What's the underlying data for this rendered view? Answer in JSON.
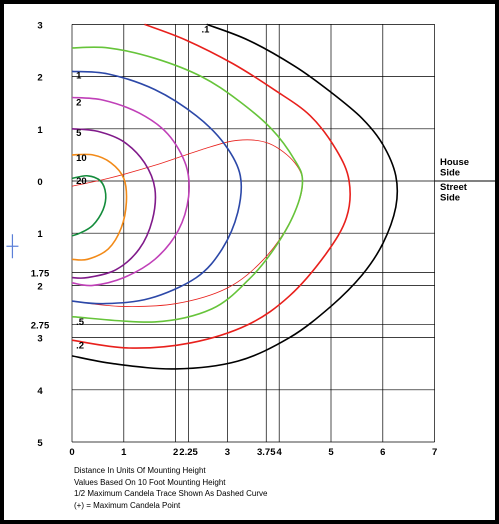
{
  "chart_data": {
    "type": "line",
    "title": "",
    "xlabel": "",
    "ylabel": "",
    "x_ticks": [
      {
        "value": 0,
        "label": "0"
      },
      {
        "value": 1,
        "label": "1"
      },
      {
        "value": 2,
        "label": "2"
      },
      {
        "value": 2.25,
        "label": "2.25"
      },
      {
        "value": 3,
        "label": "3"
      },
      {
        "value": 3.75,
        "label": "3.75"
      },
      {
        "value": 4,
        "label": "4"
      },
      {
        "value": 5,
        "label": "5"
      },
      {
        "value": 6,
        "label": "6"
      },
      {
        "value": 7,
        "label": "7"
      }
    ],
    "y_ticks": [
      {
        "value": 3,
        "label": "3"
      },
      {
        "value": 2,
        "label": "2"
      },
      {
        "value": 1,
        "label": "1"
      },
      {
        "value": 0,
        "label": "0"
      },
      {
        "value": -1,
        "label": "1"
      },
      {
        "value": -1.75,
        "label": "1.75"
      },
      {
        "value": -2,
        "label": "2"
      },
      {
        "value": -2.75,
        "label": "2.75"
      },
      {
        "value": -3,
        "label": "3"
      },
      {
        "value": -4,
        "label": "4"
      },
      {
        "value": -5,
        "label": "5"
      }
    ],
    "xlim": [
      0,
      7
    ],
    "ylim": [
      -5,
      3
    ],
    "grid": true,
    "side_labels": {
      "house": "House\nSide",
      "street": "Street\nSide"
    },
    "series": [
      {
        "label": ".1",
        "label_at": [
          2.5,
          2.9
        ],
        "color": "#000000",
        "points": [
          [
            2.6,
            3.0
          ],
          [
            3.4,
            2.7
          ],
          [
            4.3,
            2.2
          ],
          [
            5.0,
            1.7
          ],
          [
            5.6,
            1.2
          ],
          [
            6.0,
            0.7
          ],
          [
            6.25,
            0.1
          ],
          [
            6.25,
            -0.5
          ],
          [
            6.0,
            -1.2
          ],
          [
            5.6,
            -1.8
          ],
          [
            5.0,
            -2.4
          ],
          [
            4.2,
            -3.0
          ],
          [
            3.2,
            -3.45
          ],
          [
            2.0,
            -3.6
          ],
          [
            0.8,
            -3.5
          ],
          [
            0,
            -3.35
          ]
        ]
      },
      {
        "label": ".2",
        "label_at": [
          0.08,
          -3.15
        ],
        "color": "#e8201c",
        "points": [
          [
            1.4,
            3.0
          ],
          [
            2.2,
            2.7
          ],
          [
            3.1,
            2.25
          ],
          [
            3.9,
            1.75
          ],
          [
            4.6,
            1.25
          ],
          [
            5.1,
            0.6
          ],
          [
            5.35,
            0.0
          ],
          [
            5.3,
            -0.7
          ],
          [
            4.9,
            -1.4
          ],
          [
            4.2,
            -2.2
          ],
          [
            3.4,
            -2.75
          ],
          [
            2.3,
            -3.1
          ],
          [
            1.1,
            -3.2
          ],
          [
            0,
            -3.05
          ]
        ]
      },
      {
        "label": ".5",
        "label_at": [
          0.08,
          -2.7
        ],
        "color": "#66c43a",
        "points": [
          [
            0,
            2.55
          ],
          [
            0.7,
            2.55
          ],
          [
            1.6,
            2.35
          ],
          [
            2.5,
            2.0
          ],
          [
            3.2,
            1.55
          ],
          [
            3.85,
            1.0
          ],
          [
            4.3,
            0.4
          ],
          [
            4.45,
            0.0
          ],
          [
            4.3,
            -0.6
          ],
          [
            3.9,
            -1.3
          ],
          [
            3.4,
            -1.9
          ],
          [
            2.7,
            -2.45
          ],
          [
            1.6,
            -2.7
          ],
          [
            0,
            -2.6
          ]
        ]
      },
      {
        "label": "1",
        "label_at": [
          0.08,
          2.02
        ],
        "color": "#2c48a8",
        "points": [
          [
            0,
            2.1
          ],
          [
            0.7,
            2.05
          ],
          [
            1.6,
            1.75
          ],
          [
            2.4,
            1.25
          ],
          [
            2.95,
            0.7
          ],
          [
            3.25,
            0.1
          ],
          [
            3.2,
            -0.6
          ],
          [
            2.9,
            -1.3
          ],
          [
            2.4,
            -1.85
          ],
          [
            1.5,
            -2.25
          ],
          [
            0.6,
            -2.35
          ],
          [
            0,
            -2.3
          ]
        ]
      },
      {
        "label": "2",
        "label_at": [
          0.08,
          1.5
        ],
        "color": "#c040b8",
        "points": [
          [
            0,
            1.6
          ],
          [
            0.6,
            1.55
          ],
          [
            1.3,
            1.3
          ],
          [
            1.85,
            0.9
          ],
          [
            2.2,
            0.3
          ],
          [
            2.25,
            -0.3
          ],
          [
            2.05,
            -0.95
          ],
          [
            1.6,
            -1.5
          ],
          [
            1.0,
            -1.85
          ],
          [
            0.4,
            -2.0
          ],
          [
            0,
            -1.95
          ]
        ]
      },
      {
        "label": "5",
        "label_at": [
          0.08,
          0.92
        ],
        "color": "#801a8a",
        "points": [
          [
            0,
            1.0
          ],
          [
            0.5,
            0.95
          ],
          [
            1.0,
            0.75
          ],
          [
            1.4,
            0.35
          ],
          [
            1.6,
            -0.15
          ],
          [
            1.55,
            -0.75
          ],
          [
            1.3,
            -1.3
          ],
          [
            0.85,
            -1.7
          ],
          [
            0.3,
            -1.85
          ],
          [
            0,
            -1.85
          ]
        ]
      },
      {
        "label": "10",
        "label_at": [
          0.08,
          0.44
        ],
        "color": "#f28a18",
        "points": [
          [
            0,
            0.5
          ],
          [
            0.4,
            0.5
          ],
          [
            0.75,
            0.35
          ],
          [
            1.0,
            0.05
          ],
          [
            1.05,
            -0.4
          ],
          [
            0.95,
            -0.9
          ],
          [
            0.7,
            -1.3
          ],
          [
            0.3,
            -1.5
          ],
          [
            0,
            -1.5
          ]
        ]
      },
      {
        "label": "20",
        "label_at": [
          0.08,
          0.0
        ],
        "color": "#148c3c",
        "points": [
          [
            0,
            0.05
          ],
          [
            0.3,
            0.1
          ],
          [
            0.55,
            0.0
          ],
          [
            0.65,
            -0.25
          ],
          [
            0.6,
            -0.55
          ],
          [
            0.4,
            -0.85
          ],
          [
            0.15,
            -1.0
          ],
          [
            0,
            -1.05
          ]
        ]
      }
    ],
    "half_max_trace": {
      "color": "#e8201c",
      "points": [
        [
          0,
          -0.1
        ],
        [
          0.7,
          0.05
        ],
        [
          1.6,
          0.3
        ],
        [
          2.5,
          0.6
        ],
        [
          3.2,
          0.78
        ],
        [
          3.8,
          0.72
        ],
        [
          4.3,
          0.35
        ],
        [
          4.45,
          -0.1
        ],
        [
          4.2,
          -0.8
        ],
        [
          3.7,
          -1.5
        ],
        [
          3.0,
          -2.05
        ],
        [
          2.0,
          -2.35
        ],
        [
          0.9,
          -2.4
        ],
        [
          0,
          -2.3
        ]
      ]
    },
    "left_marker": [
      -1.15,
      -1.25
    ]
  },
  "notes": {
    "line1": "Distance In Units Of Mounting Height",
    "line2": "Values Based On 10 Foot Mounting Height",
    "line3": "1/2 Maximum Candela Trace Shown As Dashed Curve",
    "line4": "(+) = Maximum Candela Point"
  }
}
